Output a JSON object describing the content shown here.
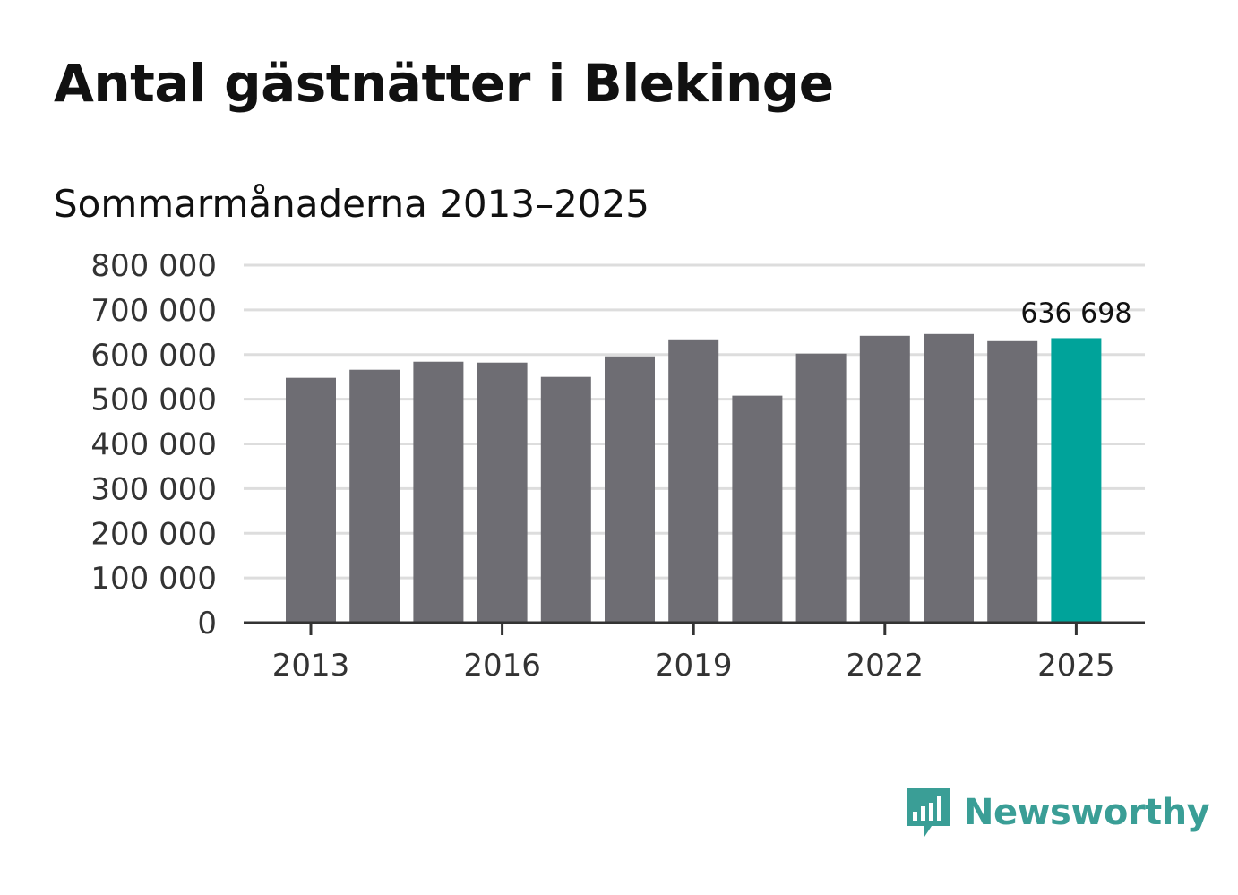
{
  "header": {
    "title": "Antal gästnätter i Blekinge",
    "subtitle": "Sommarmånaderna 2013–2025"
  },
  "brand": {
    "name": "Newsworthy",
    "logo_icon": "bar-chart-speech-bubble-icon",
    "color": "#3a9e96"
  },
  "colors": {
    "bar": "#6e6d73",
    "highlight": "#00a39a",
    "grid": "#dddddd",
    "axis": "#333333"
  },
  "chart_data": {
    "type": "bar",
    "categories": [
      "2013",
      "2014",
      "2015",
      "2016",
      "2017",
      "2018",
      "2019",
      "2020",
      "2021",
      "2022",
      "2023",
      "2024",
      "2025"
    ],
    "values": [
      548000,
      566000,
      584000,
      582000,
      550000,
      596000,
      634000,
      508000,
      602000,
      642000,
      646000,
      630000,
      636698
    ],
    "highlight_index": 12,
    "data_label": "636 698",
    "ylim": [
      0,
      800000
    ],
    "y_ticks": [
      0,
      100000,
      200000,
      300000,
      400000,
      500000,
      600000,
      700000,
      800000
    ],
    "y_tick_labels": [
      "0",
      "100 000",
      "200 000",
      "300 000",
      "400 000",
      "500 000",
      "600 000",
      "700 000",
      "800 000"
    ],
    "x_tick_labels": [
      "2013",
      "2016",
      "2019",
      "2022",
      "2025"
    ],
    "grid": true,
    "legend": "none"
  }
}
